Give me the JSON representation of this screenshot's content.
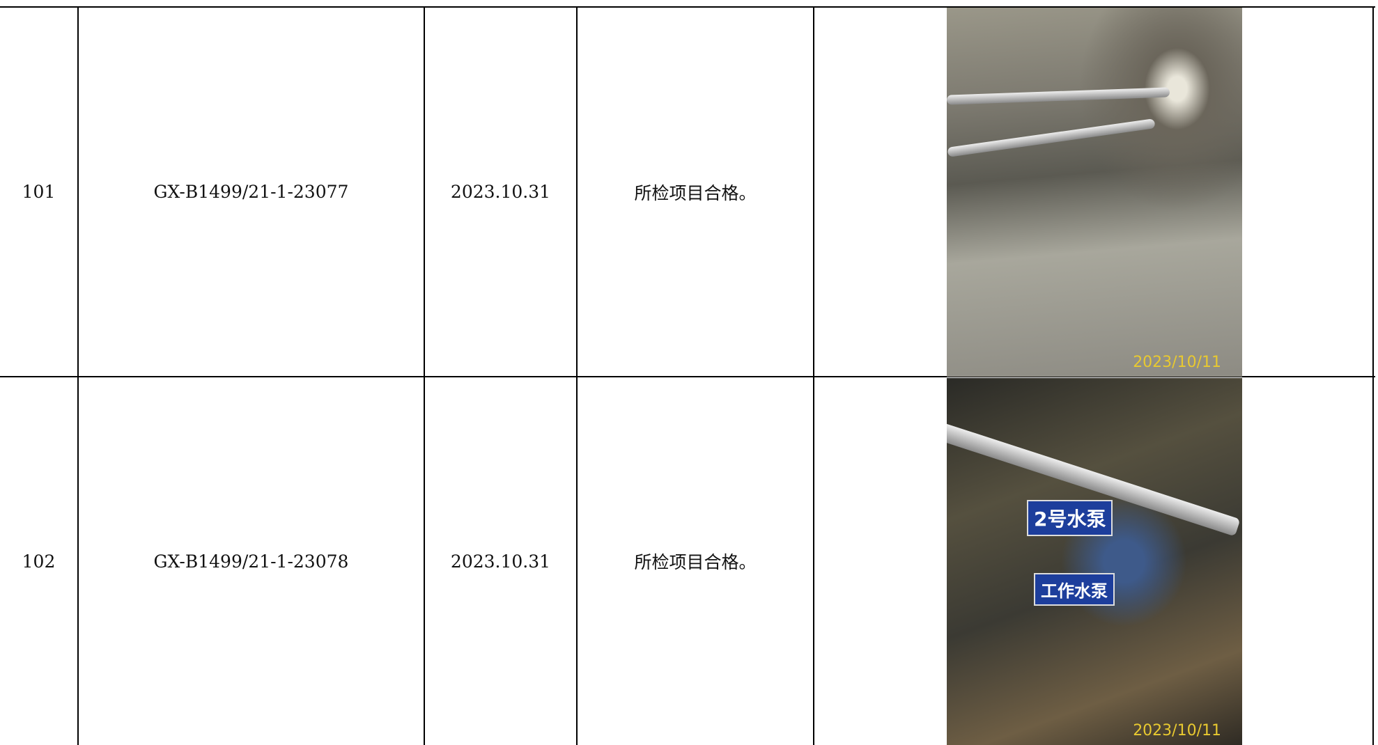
{
  "table": {
    "rows": [
      {
        "no": "101",
        "code": "GX-B1499/21-1-23077",
        "date": "2023.10.31",
        "result": "所检项目合格。",
        "photo": {
          "stamp": "2023/10/11"
        }
      },
      {
        "no": "102",
        "code": "GX-B1499/21-1-23078",
        "date": "2023.10.31",
        "result": "所检项目合格。",
        "photo": {
          "stamp": "2023/10/11",
          "signs": [
            "2号水泵",
            "工作水泵"
          ]
        }
      }
    ]
  }
}
